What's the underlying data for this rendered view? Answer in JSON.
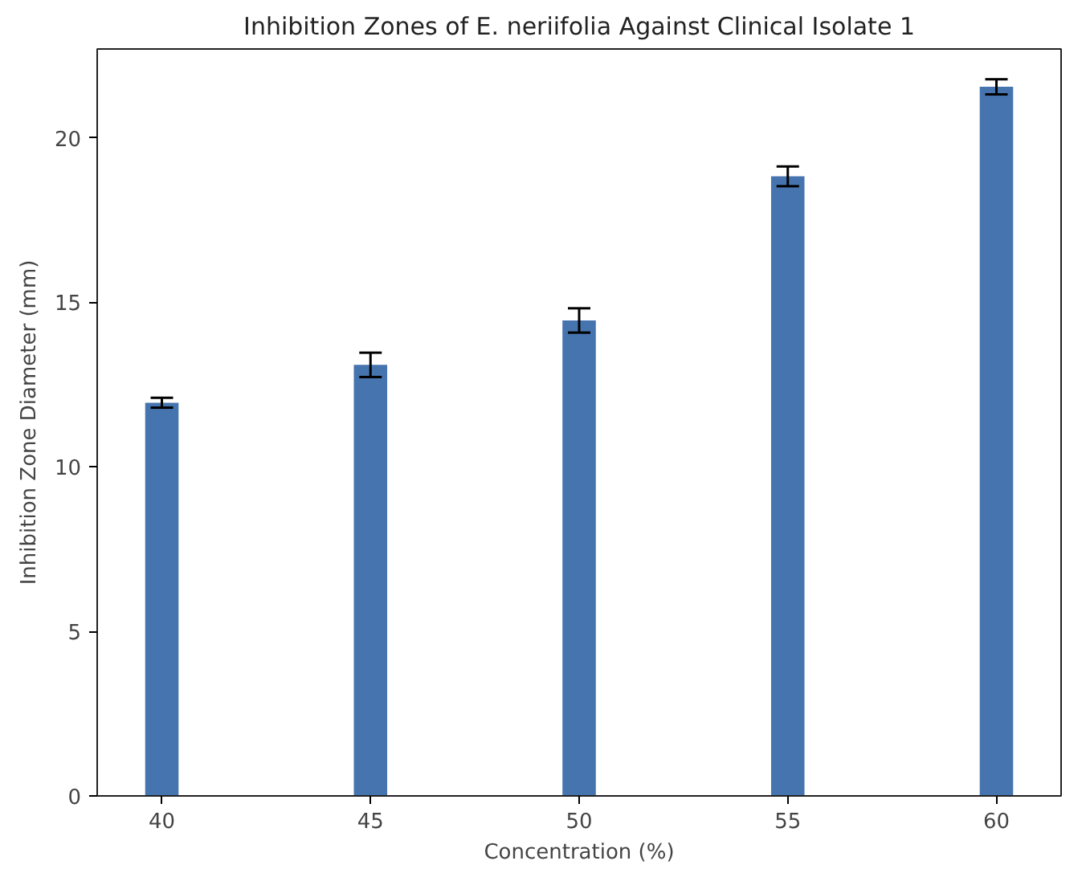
{
  "chart_data": {
    "type": "bar",
    "title": "Inhibition Zones of E. neriifolia Against Clinical Isolate 1",
    "xlabel": "Concentration (%)",
    "ylabel": "Inhibition Zone Diameter (mm)",
    "x": [
      40,
      45,
      50,
      55,
      60
    ],
    "series": [
      {
        "color": "#4674af",
        "values": [
          11.95,
          13.1,
          14.45,
          18.83,
          21.55
        ],
        "errors": [
          0.15,
          0.37,
          0.37,
          0.3,
          0.23
        ]
      }
    ],
    "xlim": [
      38.45,
      61.55
    ],
    "xticks": [
      40,
      45,
      50,
      55,
      60
    ],
    "ylim": [
      0,
      22.7
    ],
    "yticks": [
      0,
      5,
      10,
      15,
      20
    ],
    "grid": false
  }
}
